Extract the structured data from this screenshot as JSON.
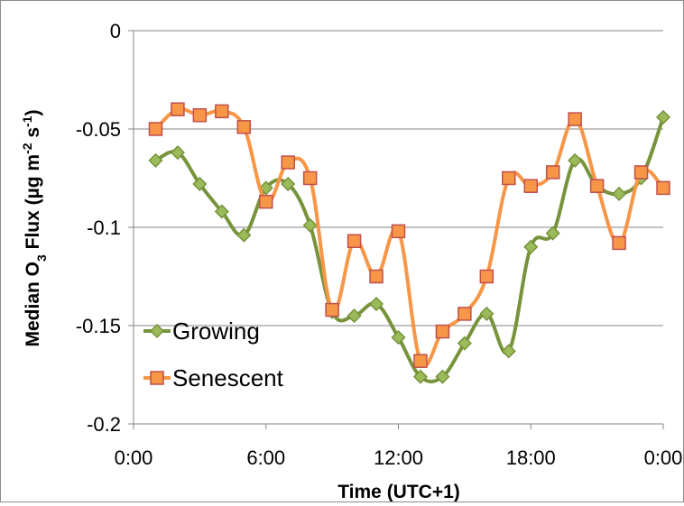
{
  "chart_data": {
    "type": "line",
    "title": "",
    "xlabel": "Time (UTC+1)",
    "ylabel": {
      "parts": [
        {
          "text": "Median O",
          "shift": "base"
        },
        {
          "text": "3",
          "shift": "sub"
        },
        {
          "text": " Flux (µg m",
          "shift": "base"
        },
        {
          "text": "-2",
          "shift": "sup"
        },
        {
          "text": " s",
          "shift": "base"
        },
        {
          "text": "-1",
          "shift": "sup"
        },
        {
          "text": ")",
          "shift": "base"
        }
      ]
    },
    "xlim": [
      0,
      24
    ],
    "ylim": [
      -0.2,
      0
    ],
    "x_ticks": [
      {
        "value": 0,
        "label": "0:00"
      },
      {
        "value": 6,
        "label": "6:00"
      },
      {
        "value": 12,
        "label": "12:00"
      },
      {
        "value": 18,
        "label": "18:00"
      },
      {
        "value": 24,
        "label": "0:00"
      }
    ],
    "y_ticks": [
      {
        "value": 0,
        "label": "0"
      },
      {
        "value": -0.05,
        "label": "-0.05"
      },
      {
        "value": -0.1,
        "label": "-0.1"
      },
      {
        "value": -0.15,
        "label": "-0.15"
      },
      {
        "value": -0.2,
        "label": "-0.2"
      }
    ],
    "grid": {
      "horizontal": true,
      "vertical": false
    },
    "legend_position": "bottom-left",
    "series": [
      {
        "name": "Growing",
        "color": "#77933c",
        "marker_fill": "#9bbb59",
        "marker": "diamond",
        "x": [
          1,
          2,
          3,
          4,
          5,
          6,
          7,
          8,
          9,
          10,
          11,
          12,
          13,
          14,
          15,
          16,
          17,
          18,
          19,
          20,
          21,
          22,
          23,
          24
        ],
        "values": [
          -0.066,
          -0.062,
          -0.078,
          -0.092,
          -0.104,
          -0.08,
          -0.078,
          -0.099,
          -0.143,
          -0.145,
          -0.139,
          -0.156,
          -0.176,
          -0.176,
          -0.159,
          -0.144,
          -0.163,
          -0.11,
          -0.103,
          -0.066,
          -0.079,
          -0.083,
          -0.075,
          -0.044
        ]
      },
      {
        "name": "Senescent",
        "color": "#f79646",
        "marker_fill": "#f79646",
        "marker_stroke": "#c0504d",
        "marker": "square",
        "x": [
          1,
          2,
          3,
          4,
          5,
          6,
          7,
          8,
          9,
          10,
          11,
          12,
          13,
          14,
          15,
          16,
          17,
          18,
          19,
          20,
          21,
          22,
          23,
          24
        ],
        "values": [
          -0.05,
          -0.04,
          -0.043,
          -0.041,
          -0.049,
          -0.087,
          -0.067,
          -0.075,
          -0.142,
          -0.107,
          -0.125,
          -0.102,
          -0.168,
          -0.153,
          -0.144,
          -0.125,
          -0.075,
          -0.079,
          -0.072,
          -0.045,
          -0.079,
          -0.108,
          -0.072,
          -0.08
        ]
      }
    ]
  }
}
